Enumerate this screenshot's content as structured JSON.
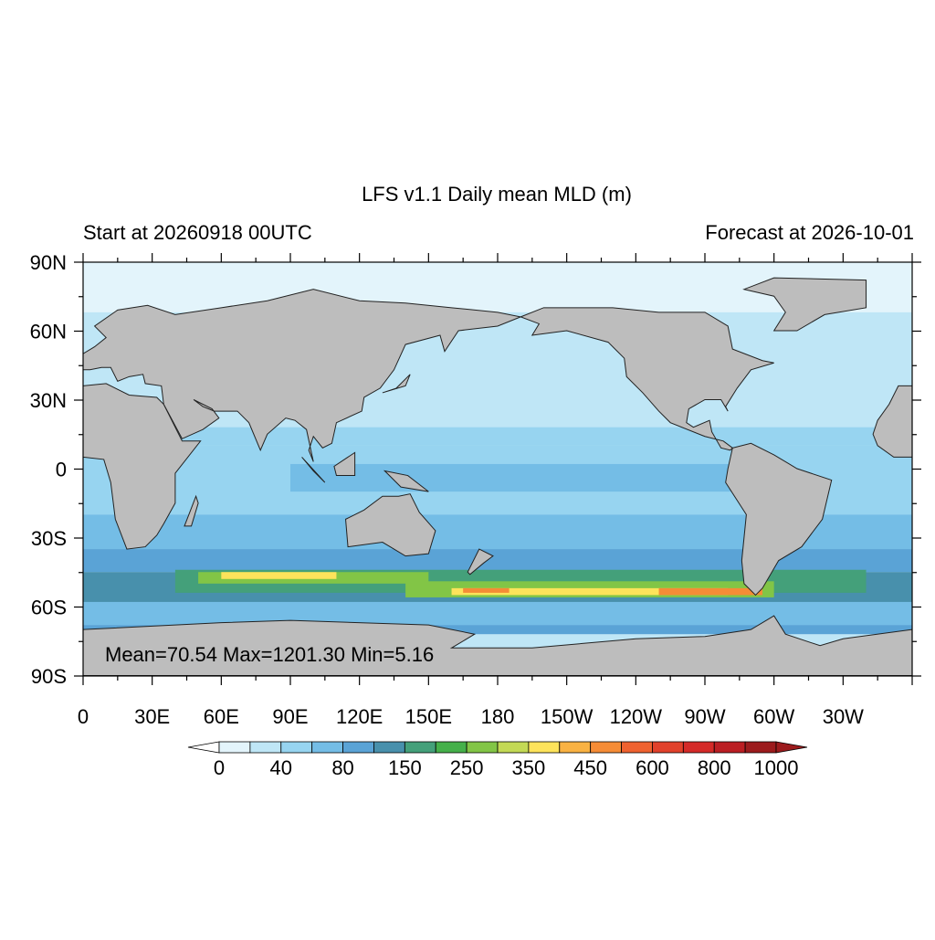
{
  "title": "LFS v1.1 Daily mean MLD (m)",
  "left_subtitle": "Start at 20260918 00UTC",
  "right_subtitle": "Forecast at 2026-10-01",
  "annotation": "Mean=70.54  Max=1201.30  Min=5.16",
  "lat_labels": [
    "90N",
    "60N",
    "30N",
    "0",
    "30S",
    "60S",
    "90S"
  ],
  "lon_labels": [
    "0",
    "30E",
    "60E",
    "90E",
    "120E",
    "150E",
    "180",
    "150W",
    "120W",
    "90W",
    "60W",
    "30W"
  ],
  "colorbar": {
    "labels": [
      "0",
      "40",
      "80",
      "150",
      "250",
      "350",
      "450",
      "600",
      "800",
      "1000"
    ],
    "colors": [
      "#e3f4fb",
      "#bfe6f6",
      "#97d4f0",
      "#74bde6",
      "#5aa3d6",
      "#4890ac",
      "#44a07a",
      "#45b04a",
      "#82c546",
      "#c3d955",
      "#fde35b",
      "#f9b243",
      "#f58c36",
      "#ef6230",
      "#e1412b",
      "#d42a28",
      "#bb1e23",
      "#9c1b1d"
    ]
  }
}
